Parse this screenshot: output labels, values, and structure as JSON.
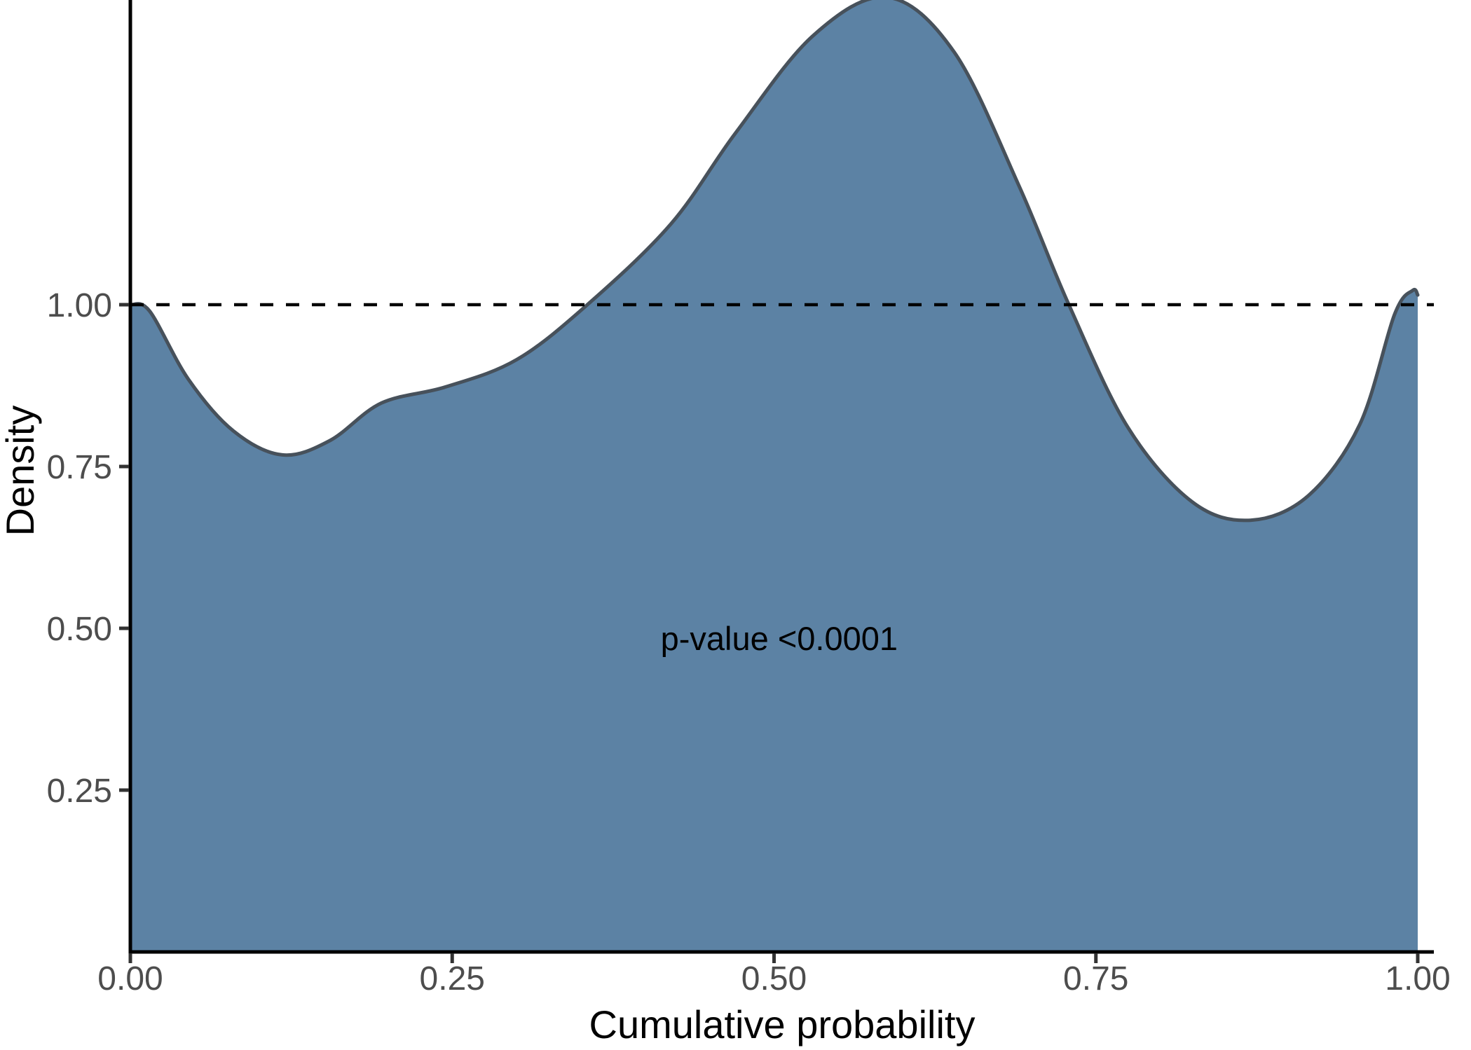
{
  "chart_data": {
    "type": "area",
    "subtype": "density",
    "title": "",
    "xlabel": "Cumulative probability",
    "ylabel": "Density",
    "xlim": [
      0,
      1
    ],
    "ylim": [
      0,
      1.47
    ],
    "grid": false,
    "legend": "none",
    "x_ticks": [
      {
        "value": 0.0,
        "label": "0.00"
      },
      {
        "value": 0.25,
        "label": "0.25"
      },
      {
        "value": 0.5,
        "label": "0.50"
      },
      {
        "value": 0.75,
        "label": "0.75"
      },
      {
        "value": 1.0,
        "label": "1.00"
      }
    ],
    "y_ticks": [
      {
        "value": 0.25,
        "label": "0.25"
      },
      {
        "value": 0.5,
        "label": "0.50"
      },
      {
        "value": 0.75,
        "label": "0.75"
      },
      {
        "value": 1.0,
        "label": "1.00"
      }
    ],
    "reference_line": {
      "y": 1.0,
      "style": "dashed",
      "color": "#000000"
    },
    "annotation": {
      "text": "p-value <0.0001",
      "x": 0.504,
      "y": 0.484
    },
    "series": [
      {
        "name": "density",
        "points": [
          [
            0.0,
            1.0
          ],
          [
            0.015,
            0.99
          ],
          [
            0.045,
            0.885
          ],
          [
            0.08,
            0.805
          ],
          [
            0.118,
            0.768
          ],
          [
            0.155,
            0.79
          ],
          [
            0.195,
            0.848
          ],
          [
            0.245,
            0.873
          ],
          [
            0.3,
            0.915
          ],
          [
            0.355,
            1.0
          ],
          [
            0.42,
            1.125
          ],
          [
            0.47,
            1.265
          ],
          [
            0.53,
            1.415
          ],
          [
            0.588,
            1.475
          ],
          [
            0.64,
            1.39
          ],
          [
            0.69,
            1.185
          ],
          [
            0.729,
            1.0
          ],
          [
            0.775,
            0.81
          ],
          [
            0.825,
            0.695
          ],
          [
            0.87,
            0.667
          ],
          [
            0.915,
            0.705
          ],
          [
            0.955,
            0.815
          ],
          [
            0.982,
            0.985
          ],
          [
            0.996,
            1.022
          ],
          [
            1.0,
            1.015
          ]
        ]
      }
    ],
    "colors": {
      "fill": "#5C82A4",
      "curve_stroke": "#47515B",
      "axis": "#000000",
      "tick_mark": "#333333",
      "tick_label": "#4D4D4D",
      "background": "#FFFFFF"
    }
  }
}
